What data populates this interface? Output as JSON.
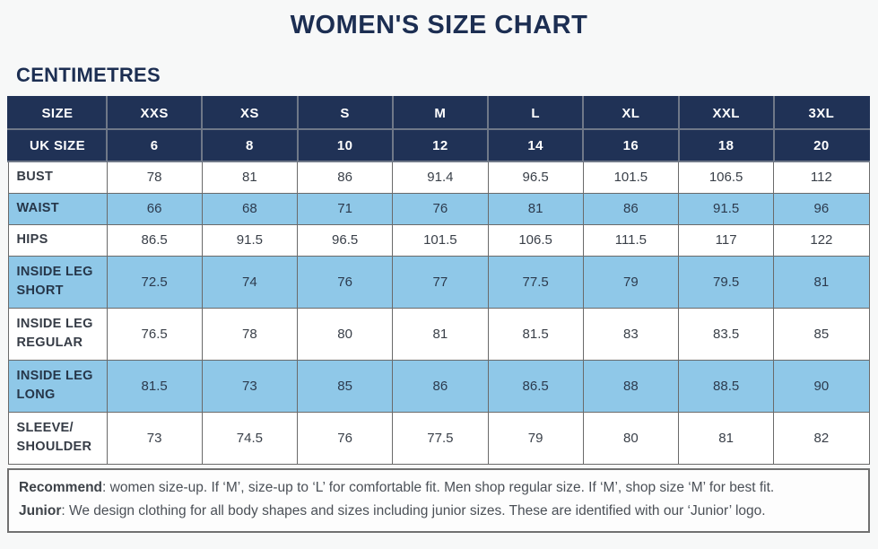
{
  "page": {
    "title": "WOMEN'S SIZE CHART",
    "subtitle": "CENTIMETRES"
  },
  "colors": {
    "navy_header": "#203256",
    "highlight_blue": "#8fc8e8",
    "title_navy": "#1c2e52",
    "body_text": "#3a4049"
  },
  "chart_data": {
    "type": "table",
    "title": "WOMEN'S SIZE CHART",
    "units": "CENTIMETRES",
    "columns": [
      "SIZE",
      "XXS",
      "XS",
      "S",
      "M",
      "L",
      "XL",
      "XXL",
      "3XL"
    ],
    "uk_sizes": [
      "6",
      "8",
      "10",
      "12",
      "14",
      "16",
      "18",
      "20"
    ],
    "rows": [
      {
        "label": "BUST",
        "values": [
          "78",
          "81",
          "86",
          "91.4",
          "96.5",
          "101.5",
          "106.5",
          "112"
        ]
      },
      {
        "label": "WAIST",
        "values": [
          "66",
          "68",
          "71",
          "76",
          "81",
          "86",
          "91.5",
          "96"
        ]
      },
      {
        "label": "HIPS",
        "values": [
          "86.5",
          "91.5",
          "96.5",
          "101.5",
          "106.5",
          "111.5",
          "117",
          "122"
        ]
      },
      {
        "label": "INSIDE LEG SHORT",
        "values": [
          "72.5",
          "74",
          "76",
          "77",
          "77.5",
          "79",
          "79.5",
          "81"
        ]
      },
      {
        "label": "INSIDE LEG REGULAR",
        "values": [
          "76.5",
          "78",
          "80",
          "81",
          "81.5",
          "83",
          "83.5",
          "85"
        ]
      },
      {
        "label": "INSIDE LEG LONG",
        "values": [
          "81.5",
          "73",
          "85",
          "86",
          "86.5",
          "88",
          "88.5",
          "90"
        ]
      },
      {
        "label": "SLEEVE/SHOULDER",
        "values": [
          "73",
          "74.5",
          "76",
          "77.5",
          "79",
          "80",
          "81",
          "82"
        ]
      }
    ]
  },
  "table": {
    "header_rows": [
      {
        "label": "SIZE",
        "values": [
          "XXS",
          "XS",
          "S",
          "M",
          "L",
          "XL",
          "XXL",
          "3XL"
        ]
      },
      {
        "label": "UK SIZE",
        "values": [
          "6",
          "8",
          "10",
          "12",
          "14",
          "16",
          "18",
          "20"
        ]
      }
    ],
    "rows": [
      {
        "label": "BUST",
        "values": [
          "78",
          "81",
          "86",
          "91.4",
          "96.5",
          "101.5",
          "106.5",
          "112"
        ],
        "highlight": false
      },
      {
        "label": "WAIST",
        "values": [
          "66",
          "68",
          "71",
          "76",
          "81",
          "86",
          "91.5",
          "96"
        ],
        "highlight": true
      },
      {
        "label": "HIPS",
        "values": [
          "86.5",
          "91.5",
          "96.5",
          "101.5",
          "106.5",
          "111.5",
          "117",
          "122"
        ],
        "highlight": false
      },
      {
        "label": "INSIDE LEG\nSHORT",
        "values": [
          "72.5",
          "74",
          "76",
          "77",
          "77.5",
          "79",
          "79.5",
          "81"
        ],
        "highlight": true
      },
      {
        "label": "INSIDE LEG\nREGULAR",
        "values": [
          "76.5",
          "78",
          "80",
          "81",
          "81.5",
          "83",
          "83.5",
          "85"
        ],
        "highlight": false
      },
      {
        "label": "INSIDE LEG\nLONG",
        "values": [
          "81.5",
          "73",
          "85",
          "86",
          "86.5",
          "88",
          "88.5",
          "90"
        ],
        "highlight": true
      },
      {
        "label": "SLEEVE/\nSHOULDER",
        "values": [
          "73",
          "74.5",
          "76",
          "77.5",
          "79",
          "80",
          "81",
          "82"
        ],
        "highlight": false
      }
    ]
  },
  "footer": {
    "notes": [
      {
        "lead": "Recommend",
        "text": ": women size-up. If ‘M’, size-up to ‘L’ for comfortable fit. Men shop regular size. If ‘M’, shop size ‘M’ for best fit."
      },
      {
        "lead": "Junior",
        "text": ": We design clothing for all body shapes and sizes including junior sizes. These are identified with our ‘Junior’ logo."
      }
    ]
  }
}
